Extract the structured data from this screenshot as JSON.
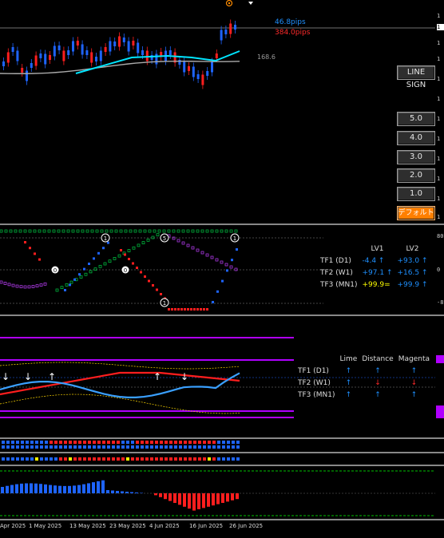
{
  "main": {
    "pips_blue": "46.8pips",
    "pips_red": "384.0pips",
    "ma_value": "168.6",
    "line_sign_label": "LINE SIGN",
    "buttons": [
      "5.0",
      "4.0",
      "3.0",
      "2.0",
      "1.0"
    ],
    "default_label": "デフォルト",
    "colors": {
      "bull": "#1e64ff",
      "bear": "#ff1e1e",
      "cyan": "#00e5ff",
      "orange": "#ff8c00"
    }
  },
  "panel2": {
    "headers": [
      "LV1",
      "LV2"
    ],
    "rows": [
      {
        "tf": "TF1 (D1)",
        "lv1": "-4.4 ↑",
        "lv2": "+93.0 ↑"
      },
      {
        "tf": "TF2 (W1)",
        "lv1": "+97.1 ↑",
        "lv2": "+16.5 ↑"
      },
      {
        "tf": "TF3 (MN1)",
        "lv1": "+99.9=",
        "lv2": "+99.9 ↑"
      }
    ]
  },
  "panel3": {
    "headers": [
      "Lime",
      "Distance",
      "Magenta"
    ],
    "rows": [
      {
        "tf": "TF1 (D1)",
        "lime": "↑",
        "distance": "↑",
        "magenta": "↑"
      },
      {
        "tf": "TF2 (W1)",
        "lime": "↑",
        "distance": "↓",
        "magenta": "↓"
      },
      {
        "tf": "TF3 (MN1)",
        "lime": "↑",
        "distance": "↑",
        "magenta": "↑"
      }
    ]
  },
  "xaxis": [
    "Apr 2025",
    "1 May 2025",
    "13 May 2025",
    "23 May 2025",
    "4 Jun 2025",
    "16 Jun 2025",
    "26 Jun 2025"
  ]
}
